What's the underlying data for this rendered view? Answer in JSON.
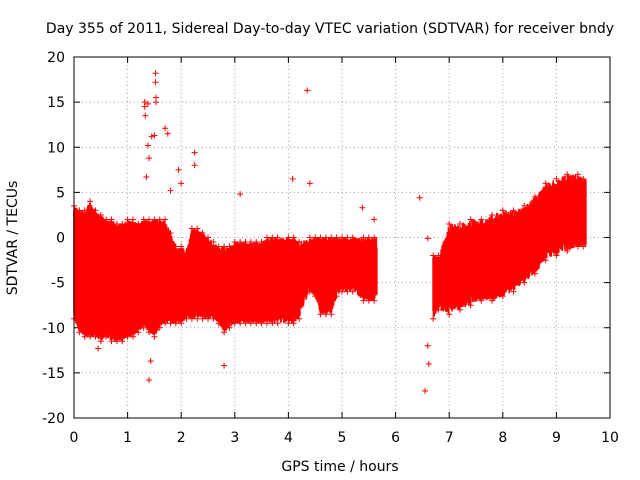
{
  "chart_data": {
    "type": "scatter",
    "title": "Day 355 of 2011, Sidereal Day-to-day VTEC variation (SDTVAR) for receiver bndy",
    "xlabel": "GPS time / hours",
    "ylabel": "SDTVAR / TECUs",
    "xlim": [
      0,
      10
    ],
    "ylim": [
      -20,
      20
    ],
    "xticks": [
      "0",
      "1",
      "2",
      "3",
      "4",
      "5",
      "6",
      "7",
      "8",
      "9",
      "10"
    ],
    "yticks": [
      "-20",
      "-15",
      "-10",
      "-5",
      "0",
      "5",
      "10",
      "15",
      "20"
    ],
    "grid": true,
    "marker": "+",
    "color": "#ff0000",
    "series": [
      {
        "name": "SDTVAR",
        "description_of_density": "dense vertical spread; envelope given as [x, ymin, ymax]",
        "envelope": [
          [
            0.0,
            -9,
            3.5
          ],
          [
            0.1,
            -10.5,
            3
          ],
          [
            0.2,
            -11,
            3
          ],
          [
            0.3,
            -11,
            4
          ],
          [
            0.4,
            -11,
            3
          ],
          [
            0.5,
            -11.5,
            2.5
          ],
          [
            0.6,
            -11,
            2
          ],
          [
            0.7,
            -11.5,
            2
          ],
          [
            0.8,
            -11.5,
            1.5
          ],
          [
            0.9,
            -11.5,
            1.5
          ],
          [
            1.0,
            -11,
            2
          ],
          [
            1.1,
            -11,
            2
          ],
          [
            1.2,
            -10.5,
            1.5
          ],
          [
            1.3,
            -10,
            2
          ],
          [
            1.4,
            -10.5,
            2
          ],
          [
            1.5,
            -11,
            2
          ],
          [
            1.6,
            -10,
            2
          ],
          [
            1.7,
            -9.5,
            2
          ],
          [
            1.8,
            -9.5,
            0.5
          ],
          [
            1.9,
            -9.5,
            -1
          ],
          [
            2.0,
            -9.5,
            -1
          ],
          [
            2.1,
            -9,
            -1.5
          ],
          [
            2.2,
            -9,
            1
          ],
          [
            2.3,
            -9,
            1
          ],
          [
            2.4,
            -9,
            0.5
          ],
          [
            2.5,
            -9,
            0
          ],
          [
            2.6,
            -9,
            -0.5
          ],
          [
            2.7,
            -9.5,
            -1
          ],
          [
            2.8,
            -10.5,
            -1
          ],
          [
            2.9,
            -10,
            -1
          ],
          [
            3.0,
            -9.5,
            -0.5
          ],
          [
            3.1,
            -9.5,
            -0.5
          ],
          [
            3.2,
            -9.5,
            -0.5
          ],
          [
            3.3,
            -9.5,
            -0.5
          ],
          [
            3.4,
            -9.5,
            -0.5
          ],
          [
            3.5,
            -9.5,
            -0.5
          ],
          [
            3.6,
            -9.5,
            0
          ],
          [
            3.7,
            -9.5,
            0
          ],
          [
            3.8,
            -9.5,
            0
          ],
          [
            4.0,
            -9.5,
            0
          ],
          [
            4.1,
            -9.5,
            0
          ],
          [
            4.2,
            -9,
            -0.5
          ],
          [
            4.4,
            -6,
            0
          ],
          [
            4.5,
            -6.5,
            0
          ],
          [
            4.6,
            -8.5,
            0
          ],
          [
            4.7,
            -8.5,
            0
          ],
          [
            4.8,
            -8.5,
            0
          ],
          [
            4.9,
            -6.5,
            0
          ],
          [
            5.0,
            -6,
            0
          ],
          [
            5.1,
            -6,
            0
          ],
          [
            5.2,
            -6,
            0
          ],
          [
            5.4,
            -7,
            0
          ],
          [
            5.5,
            -7,
            0
          ],
          [
            5.6,
            -7,
            0
          ],
          [
            6.7,
            -9,
            -2
          ],
          [
            6.8,
            -8,
            -2
          ],
          [
            7.0,
            -8.5,
            1.5
          ],
          [
            7.2,
            -8,
            1.5
          ],
          [
            7.4,
            -7.5,
            2
          ],
          [
            7.6,
            -7,
            2
          ],
          [
            7.8,
            -7,
            2.5
          ],
          [
            8.0,
            -6.5,
            3
          ],
          [
            8.2,
            -6,
            3
          ],
          [
            8.4,
            -5,
            3.5
          ],
          [
            8.6,
            -4,
            4.5
          ],
          [
            8.8,
            -2.5,
            6
          ],
          [
            9.0,
            -2,
            6.5
          ],
          [
            9.2,
            -1.5,
            7
          ],
          [
            9.4,
            -1,
            7
          ],
          [
            9.5,
            -1,
            6.5
          ]
        ],
        "outliers": [
          [
            1.32,
            15
          ],
          [
            1.32,
            14.5
          ],
          [
            1.33,
            13.5
          ],
          [
            1.38,
            14.8
          ],
          [
            1.52,
            18.2
          ],
          [
            1.52,
            17.2
          ],
          [
            1.53,
            15.5
          ],
          [
            1.53,
            15
          ],
          [
            1.45,
            11.2
          ],
          [
            1.5,
            11.3
          ],
          [
            1.38,
            10.2
          ],
          [
            1.4,
            8.8
          ],
          [
            1.7,
            12.1
          ],
          [
            1.75,
            11.5
          ],
          [
            1.8,
            5.2
          ],
          [
            1.35,
            6.7
          ],
          [
            1.43,
            -13.7
          ],
          [
            1.4,
            -15.8
          ],
          [
            2.25,
            9.4
          ],
          [
            2.25,
            8.0
          ],
          [
            2.0,
            6.0
          ],
          [
            1.95,
            7.5
          ],
          [
            3.1,
            4.8
          ],
          [
            4.08,
            6.5
          ],
          [
            4.35,
            16.3
          ],
          [
            4.4,
            6.0
          ],
          [
            5.38,
            3.3
          ],
          [
            5.6,
            2.0
          ],
          [
            6.45,
            4.4
          ],
          [
            6.6,
            -0.1
          ],
          [
            6.55,
            -17.0
          ],
          [
            6.6,
            -12
          ],
          [
            6.62,
            -14
          ],
          [
            2.8,
            -14.2
          ],
          [
            0.45,
            -12.3
          ]
        ]
      }
    ]
  }
}
